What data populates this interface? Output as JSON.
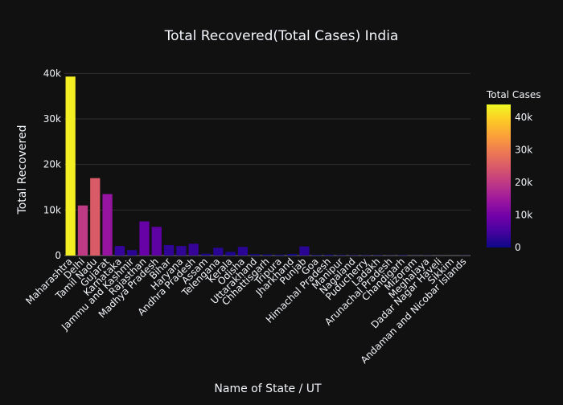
{
  "chart_data": {
    "type": "bar",
    "title": "Total Recovered(Total Cases) India",
    "xlabel": "Name of State / UT",
    "ylabel": "Total Recovered",
    "ylim": [
      0,
      42000
    ],
    "ytick_values": [
      0,
      10000,
      20000,
      30000,
      40000
    ],
    "ytick_labels": [
      "0",
      "10k",
      "20k",
      "30k",
      "40k"
    ],
    "grid": true,
    "colorbar": {
      "title": "Total Cases",
      "range": [
        0,
        44000
      ],
      "tick_values": [
        0,
        10000,
        20000,
        30000,
        40000
      ],
      "tick_labels": [
        "0",
        "10k",
        "20k",
        "30k",
        "40k"
      ],
      "colorscale": [
        "#0d0887",
        "#46039f",
        "#7201a8",
        "#9c179e",
        "#bd3786",
        "#d8576b",
        "#ed7953",
        "#fb9f3a",
        "#fdca26",
        "#f0f921"
      ],
      "placement": "right"
    },
    "categories": [
      "Maharashtra",
      "Delhi",
      "Tamil Nadu",
      "Gujarat",
      "Karnataka",
      "Jammu and Kashmir",
      "Rajasthan",
      "Madhya Pradesh",
      "Bihar",
      "Haryana",
      "Andhra Pradesh",
      "Assam",
      "Telengana",
      "Kerala",
      "Odisha",
      "Uttarakhand",
      "Chhattisgarh",
      "Tripura",
      "Jharkhand",
      "Punjab",
      "Goa",
      "Himachal Pradesh",
      "Manipur",
      "Nagaland",
      "Puducherry",
      "Ladakh",
      "Arunachal Pradesh",
      "Chandigarh",
      "Mizoram",
      "Meghalaya",
      "Dadar Nagar Haveli",
      "Sikkim",
      "Andaman and Nicobar Islands"
    ],
    "values": [
      39300,
      11000,
      17000,
      13500,
      2100,
      1200,
      7500,
      6300,
      2300,
      2100,
      2600,
      400,
      1700,
      800,
      1900,
      300,
      250,
      200,
      350,
      2000,
      150,
      200,
      120,
      100,
      100,
      100,
      50,
      100,
      30,
      50,
      20,
      10,
      40
    ],
    "color_values": [
      43000,
      20000,
      25000,
      14000,
      3500,
      2500,
      8500,
      7500,
      3000,
      3000,
      3500,
      1500,
      2500,
      1500,
      2500,
      600,
      500,
      400,
      500,
      2500,
      150,
      300,
      300,
      100,
      100,
      100,
      100,
      200,
      50,
      50,
      20,
      10,
      50
    ]
  }
}
